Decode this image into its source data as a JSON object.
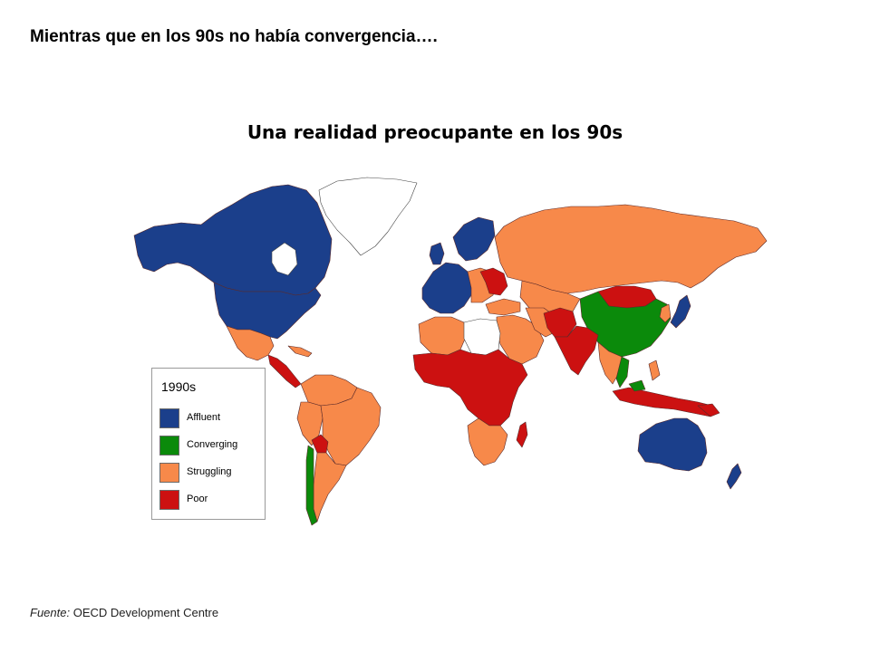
{
  "slide": {
    "title": "Mientras que en los 90s no había convergencia….",
    "map_title": "Una realidad preocupante en los 90s"
  },
  "legend": {
    "title": "1990s",
    "items": [
      {
        "label": "Affluent",
        "color": "#1b3f8b"
      },
      {
        "label": "Converging",
        "color": "#0b8a0b"
      },
      {
        "label": "Struggling",
        "color": "#f7894a"
      },
      {
        "label": "Poor",
        "color": "#cc1111"
      }
    ]
  },
  "source": {
    "label": "Fuente:",
    "text": " OECD Development Centre"
  },
  "map": {
    "type": "choropleth",
    "period": "1990s",
    "regions": {
      "Affluent": [
        "Canada",
        "United States",
        "Western Europe",
        "Scandinavia",
        "Japan",
        "Australia",
        "New Zealand"
      ],
      "Converging": [
        "China",
        "Chile",
        "Vietnam",
        "Malaysia"
      ],
      "Struggling": [
        "Russia",
        "Kazakhstan",
        "Mexico",
        "Brazil",
        "Argentina",
        "Peru",
        "Colombia",
        "Venezuela",
        "Middle East",
        "Algeria",
        "South Africa",
        "Namibia",
        "Eastern Europe",
        "Turkey",
        "Iran",
        "Thailand",
        "Philippines"
      ],
      "Poor": [
        "Mongolia",
        "India",
        "Pakistan",
        "Afghanistan",
        "Central Asia",
        "Sahel",
        "West Africa",
        "Central Africa",
        "East Africa",
        "Indonesia",
        "Papua New Guinea",
        "Ukraine",
        "Belarus",
        "Central America",
        "Bolivia"
      ]
    }
  }
}
